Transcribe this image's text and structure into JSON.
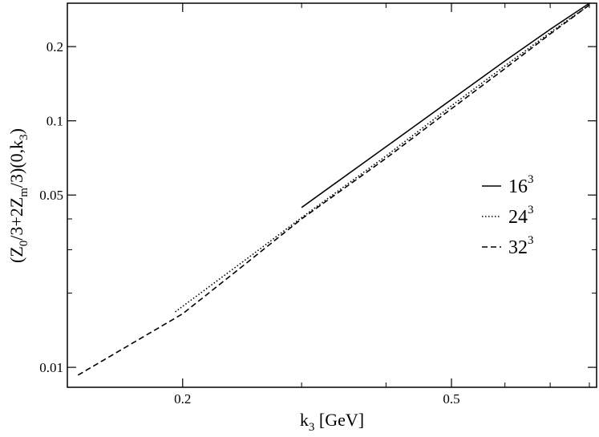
{
  "chart_data": {
    "type": "line",
    "xscale": "log",
    "yscale": "log",
    "xlim": [
      0.135,
      0.82
    ],
    "ylim": [
      0.0083,
      0.3
    ],
    "xticks_major": [
      0.2,
      0.5
    ],
    "xtick_labels": [
      "0.2",
      "0.5"
    ],
    "xticks_minor": [
      0.3,
      0.4,
      0.6,
      0.7,
      0.8
    ],
    "yticks_major": [
      0.01,
      0.05,
      0.1,
      0.2
    ],
    "ytick_labels": [
      "0.01",
      "0.05",
      "0.1",
      "0.2"
    ],
    "yticks_minor": [
      0.02,
      0.03,
      0.04
    ],
    "xlabel": {
      "main": "k",
      "sub": "3",
      "rest": " [GeV]"
    },
    "ylabel": {
      "parts": [
        {
          "t": "(Z"
        },
        {
          "t": "0",
          "sub": true
        },
        {
          "t": "/3+2Z"
        },
        {
          "t": "m",
          "sub": true
        },
        {
          "t": "/3)(0,k"
        },
        {
          "t": "3",
          "sub": true
        },
        {
          "t": ")"
        }
      ]
    },
    "legend_placement": "right",
    "grid": false,
    "series": [
      {
        "name": "16",
        "name_sup": "3",
        "style": "solid",
        "x": [
          0.3,
          0.4,
          0.5,
          0.6,
          0.7,
          0.8
        ],
        "y": [
          0.0445,
          0.0785,
          0.122,
          0.175,
          0.235,
          0.3
        ]
      },
      {
        "name": "24",
        "name_sup": "3",
        "style": "dotted",
        "x": [
          0.195,
          0.25,
          0.3,
          0.4,
          0.5,
          0.6,
          0.7,
          0.8
        ],
        "y": [
          0.0168,
          0.0278,
          0.0405,
          0.072,
          0.115,
          0.167,
          0.228,
          0.295
        ]
      },
      {
        "name": "32",
        "name_sup": "3",
        "style": "dashed",
        "x": [
          0.14,
          0.2,
          0.25,
          0.3,
          0.4,
          0.5,
          0.6,
          0.7,
          0.8
        ],
        "y": [
          0.0093,
          0.0165,
          0.0268,
          0.04,
          0.0705,
          0.112,
          0.163,
          0.225,
          0.295
        ]
      }
    ]
  }
}
